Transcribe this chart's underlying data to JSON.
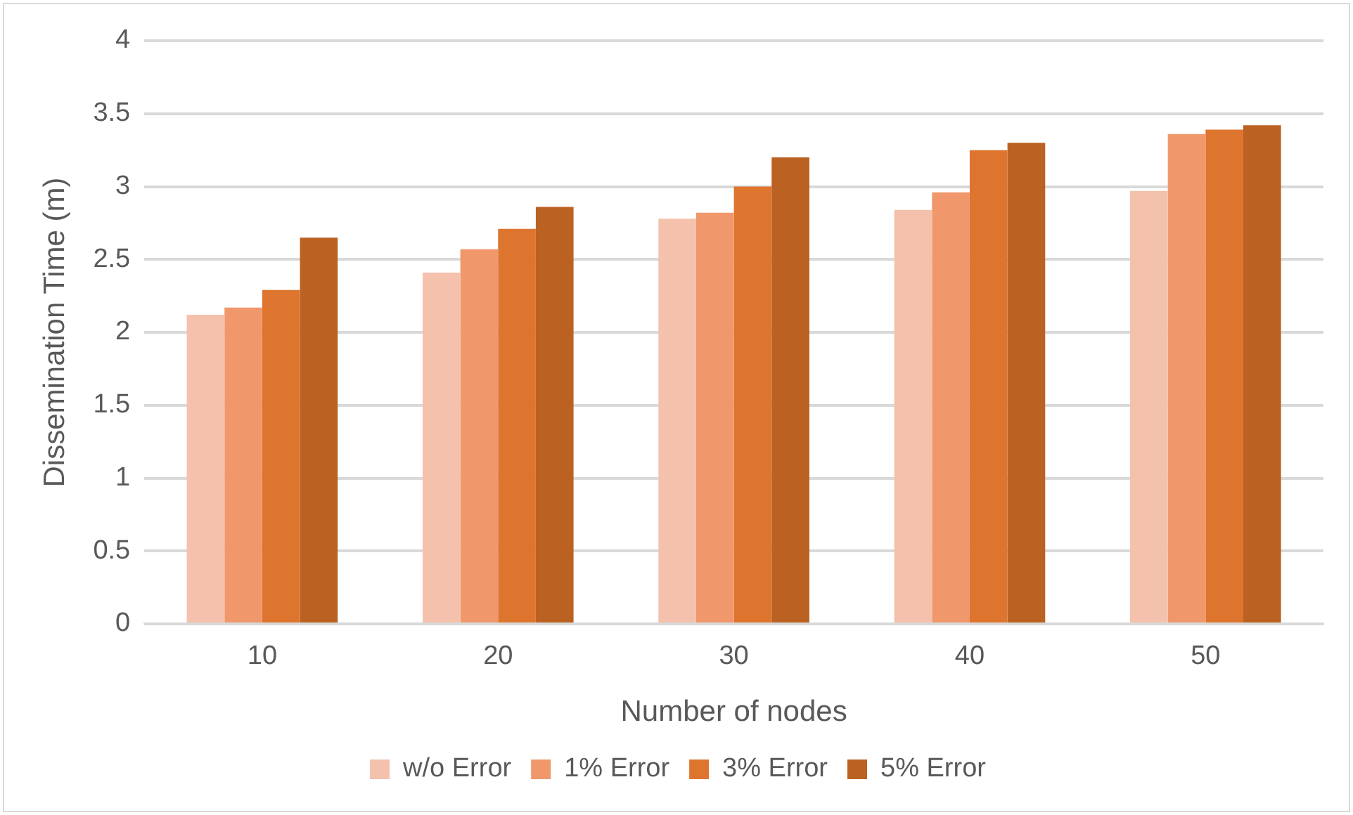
{
  "chart_data": {
    "type": "bar",
    "xlabel": "Number of nodes",
    "ylabel": "Dissemination Time (m)",
    "categories": [
      "10",
      "20",
      "30",
      "40",
      "50"
    ],
    "series": [
      {
        "name": "w/o Error",
        "color": "#f4c1ad",
        "values": [
          2.12,
          2.41,
          2.78,
          2.84,
          2.97
        ]
      },
      {
        "name": "1% Error",
        "color": "#f0986c",
        "values": [
          2.17,
          2.57,
          2.82,
          2.96,
          3.36
        ]
      },
      {
        "name": "3% Error",
        "color": "#de752e",
        "values": [
          2.29,
          2.71,
          3.0,
          3.25,
          3.39
        ]
      },
      {
        "name": "5% Error",
        "color": "#bb6122",
        "values": [
          2.65,
          2.86,
          3.2,
          3.3,
          3.42
        ]
      }
    ],
    "ylim": [
      0,
      4
    ],
    "yticks": [
      0,
      0.5,
      1,
      1.5,
      2,
      2.5,
      3,
      3.5,
      4
    ],
    "grid": "y",
    "legend": "bottom"
  }
}
